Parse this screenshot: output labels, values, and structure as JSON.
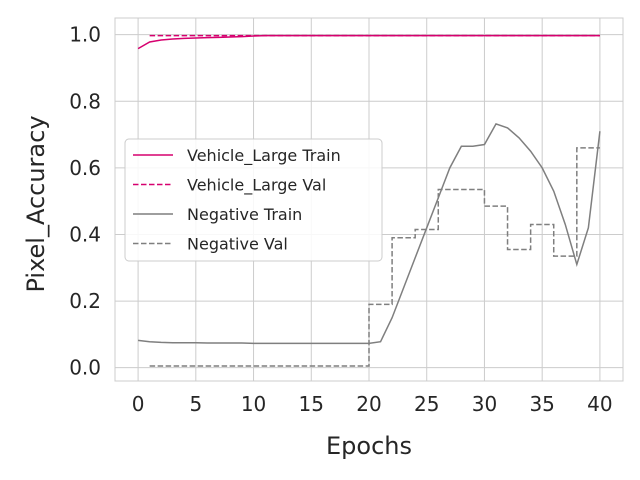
{
  "chart_data": {
    "type": "line",
    "xlabel": "Epochs",
    "ylabel": "Pixel_Accuracy",
    "xlim": [
      -2,
      42
    ],
    "ylim": [
      -0.04,
      1.05
    ],
    "xticks": [
      0,
      5,
      10,
      15,
      20,
      25,
      30,
      35,
      40
    ],
    "xtick_labels": [
      "0",
      "5",
      "10",
      "15",
      "20",
      "25",
      "30",
      "35",
      "40"
    ],
    "yticks": [
      0.0,
      0.2,
      0.4,
      0.6,
      0.8,
      1.0
    ],
    "ytick_labels": [
      "0.0",
      "0.2",
      "0.4",
      "0.6",
      "0.8",
      "1.0"
    ],
    "grid": true,
    "legend_position": "center-left",
    "series": [
      {
        "name": "Vehicle_Large Train",
        "color": "#d6006f",
        "style": "solid",
        "x": [
          0,
          1,
          2,
          3,
          4,
          5,
          6,
          7,
          8,
          9,
          10,
          11,
          12,
          13,
          14,
          15,
          16,
          17,
          18,
          19,
          20,
          21,
          22,
          23,
          24,
          25,
          26,
          27,
          28,
          29,
          30,
          31,
          32,
          33,
          34,
          35,
          36,
          37,
          38,
          39,
          40
        ],
        "y": [
          0.958,
          0.978,
          0.984,
          0.987,
          0.989,
          0.99,
          0.991,
          0.992,
          0.993,
          0.994,
          0.996,
          0.997,
          0.997,
          0.997,
          0.997,
          0.997,
          0.997,
          0.997,
          0.997,
          0.997,
          0.997,
          0.997,
          0.997,
          0.997,
          0.997,
          0.997,
          0.997,
          0.997,
          0.997,
          0.997,
          0.997,
          0.997,
          0.997,
          0.997,
          0.997,
          0.997,
          0.997,
          0.997,
          0.997,
          0.997,
          0.997
        ]
      },
      {
        "name": "Vehicle_Large Val",
        "color": "#d6006f",
        "style": "dashed",
        "x": [
          1,
          2,
          3,
          4,
          5,
          6,
          7,
          8,
          9,
          10,
          11,
          12,
          13,
          14,
          15,
          16,
          17,
          18,
          19,
          20,
          21,
          22,
          23,
          24,
          25,
          26,
          27,
          28,
          29,
          30,
          31,
          32,
          33,
          34,
          35,
          36,
          37,
          38,
          39,
          40
        ],
        "y": [
          0.997,
          0.997,
          0.997,
          0.997,
          0.997,
          0.997,
          0.997,
          0.997,
          0.997,
          0.997,
          0.997,
          0.997,
          0.997,
          0.997,
          0.997,
          0.997,
          0.997,
          0.997,
          0.997,
          0.997,
          0.997,
          0.997,
          0.997,
          0.997,
          0.997,
          0.997,
          0.997,
          0.997,
          0.997,
          0.997,
          0.997,
          0.997,
          0.997,
          0.997,
          0.997,
          0.997,
          0.997,
          0.997,
          0.997,
          0.997
        ]
      },
      {
        "name": "Negative Train",
        "color": "#7f7f7f",
        "style": "solid",
        "x": [
          0,
          1,
          2,
          3,
          4,
          5,
          6,
          7,
          8,
          9,
          10,
          11,
          12,
          13,
          14,
          15,
          16,
          17,
          18,
          19,
          20,
          21,
          22,
          23,
          24,
          25,
          26,
          27,
          28,
          29,
          30,
          31,
          32,
          33,
          34,
          35,
          36,
          37,
          38,
          39,
          40
        ],
        "y": [
          0.082,
          0.078,
          0.076,
          0.075,
          0.075,
          0.075,
          0.074,
          0.074,
          0.074,
          0.074,
          0.073,
          0.073,
          0.073,
          0.073,
          0.073,
          0.073,
          0.073,
          0.073,
          0.073,
          0.073,
          0.073,
          0.078,
          0.15,
          0.24,
          0.33,
          0.42,
          0.51,
          0.6,
          0.665,
          0.665,
          0.67,
          0.732,
          0.72,
          0.69,
          0.65,
          0.6,
          0.53,
          0.43,
          0.31,
          0.42,
          0.71
        ]
      },
      {
        "name": "Negative Val",
        "color": "#7f7f7f",
        "style": "dashed",
        "x": [
          1,
          2,
          3,
          4,
          5,
          6,
          7,
          8,
          9,
          10,
          11,
          12,
          13,
          14,
          15,
          16,
          17,
          18,
          19,
          20,
          21,
          22,
          23,
          24,
          25,
          26,
          27,
          28,
          29,
          30,
          31,
          32,
          33,
          34,
          35,
          36,
          37,
          38,
          39,
          40
        ],
        "y": [
          0.005,
          0.005,
          0.005,
          0.005,
          0.005,
          0.005,
          0.005,
          0.005,
          0.005,
          0.005,
          0.005,
          0.005,
          0.005,
          0.005,
          0.005,
          0.005,
          0.005,
          0.005,
          0.005,
          0.005,
          0.19,
          0.19,
          0.39,
          0.39,
          0.415,
          0.415,
          0.535,
          0.535,
          0.535,
          0.535,
          0.485,
          0.485,
          0.355,
          0.355,
          0.43,
          0.43,
          0.335,
          0.335,
          0.66,
          0.66
        ]
      }
    ]
  }
}
